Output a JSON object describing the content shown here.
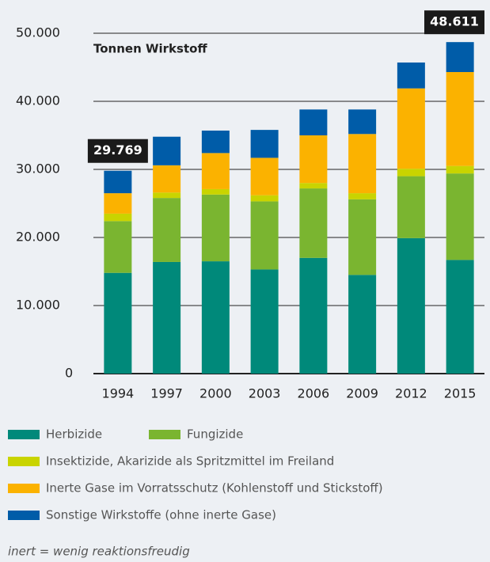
{
  "chart_data": {
    "type": "stacked_bar",
    "subtitle": "Tonnen Wirkstoff",
    "categories": [
      "1994",
      "1997",
      "2000",
      "2003",
      "2006",
      "2009",
      "2012",
      "2015"
    ],
    "series": [
      {
        "name": "Herbizide",
        "color": "#00897a",
        "values": [
          14800,
          16400,
          16500,
          15300,
          17000,
          14500,
          19900,
          16700
        ]
      },
      {
        "name": "Fungizide",
        "color": "#7ab530",
        "values": [
          7600,
          9400,
          9800,
          10000,
          10200,
          11100,
          9100,
          12700
        ]
      },
      {
        "name": "Insektizide, Akarizide als Spritzmittel im Freiland",
        "color": "#c9d400",
        "values": [
          1100,
          800,
          800,
          900,
          800,
          900,
          1100,
          1100
        ]
      },
      {
        "name": "Inerte Gase im Vorratsschutz (Kohlenstoff und Stickstoff)",
        "color": "#fbb200",
        "values": [
          3000,
          4000,
          5300,
          5500,
          7000,
          8700,
          11800,
          13800
        ]
      },
      {
        "name": "Sonstige Wirkstoffe (ohne inerte Gase)",
        "color": "#005ca8",
        "values": [
          3300,
          4200,
          3300,
          4100,
          3800,
          3600,
          3800,
          4400
        ]
      }
    ],
    "ylim": [
      0,
      50000
    ],
    "yticks": [
      0,
      {
        "value": 10000,
        "label": "10.000"
      },
      {
        "value": 20000,
        "label": "20.000"
      },
      {
        "value": 30000,
        "label": "30.000"
      },
      {
        "value": 40000,
        "label": "40.000"
      },
      {
        "value": 50000,
        "label": "50.000"
      }
    ],
    "grid": true,
    "annotations": [
      "29.769",
      "48.611"
    ],
    "footnote": "inert = wenig reaktionsfreudig"
  }
}
